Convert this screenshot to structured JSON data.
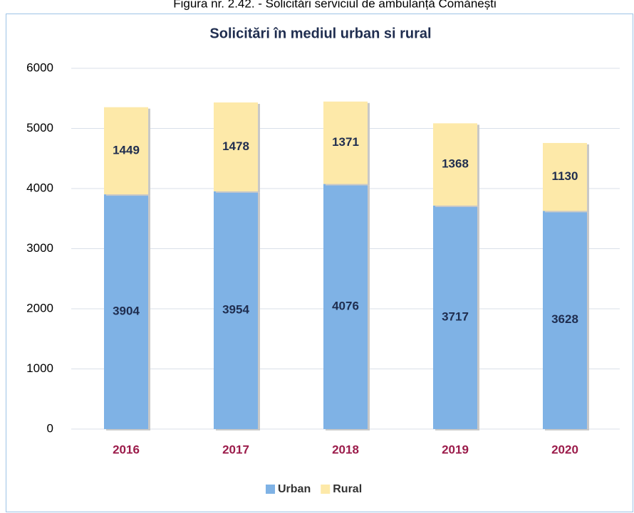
{
  "caption": "Figura nr. 2.42. - Solicitări serviciul de ambulanță Comănești",
  "chart_data": {
    "type": "stacked_bar",
    "title": "Solicitări în mediul urban si rural",
    "categories": [
      "2016",
      "2017",
      "2018",
      "2019",
      "2020"
    ],
    "series": [
      {
        "name": "Urban",
        "color": "#7fb2e5",
        "values": [
          3904,
          3954,
          4076,
          3717,
          3628
        ]
      },
      {
        "name": "Rural",
        "color": "#fde9a9",
        "values": [
          1449,
          1478,
          1371,
          1368,
          1130
        ]
      }
    ],
    "ylim": [
      0,
      6000
    ],
    "yticks": [
      0,
      1000,
      2000,
      3000,
      4000,
      5000,
      6000
    ],
    "grid": true,
    "legend": "bottom"
  }
}
